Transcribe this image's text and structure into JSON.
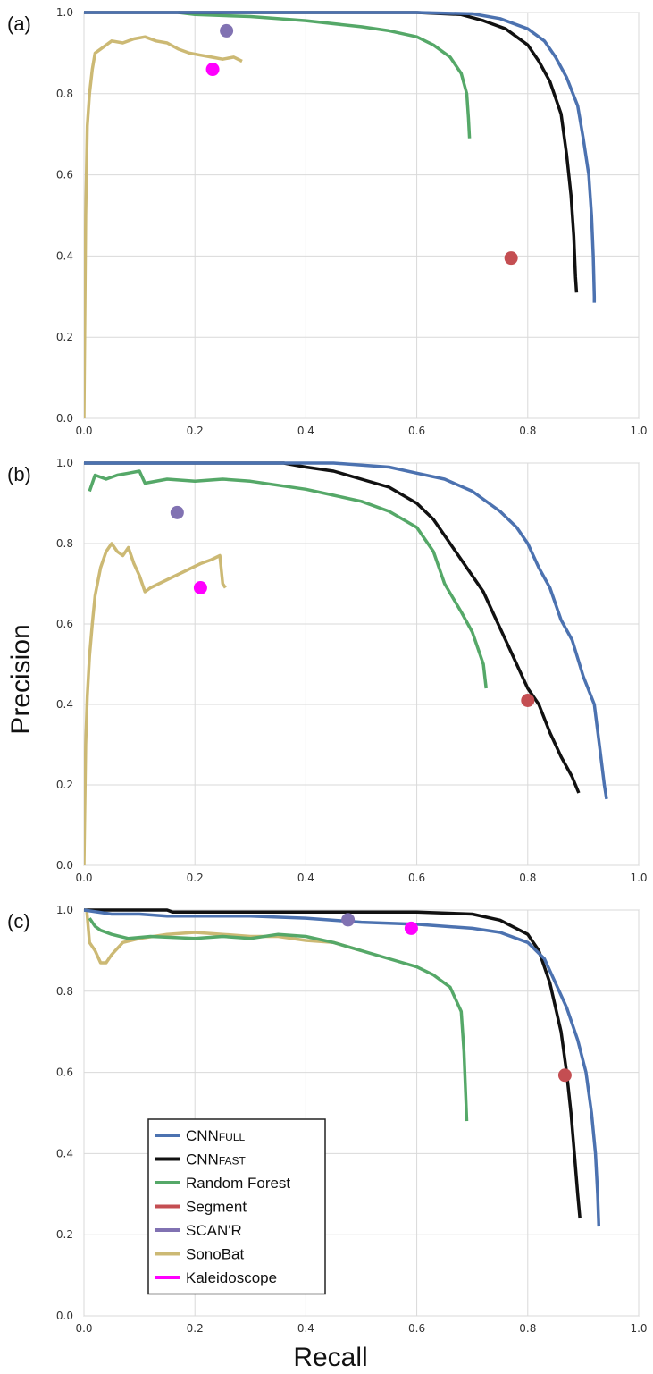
{
  "figure": {
    "xlabel": "Recall",
    "ylabel": "Precision",
    "legend": {
      "placement": "lower-left of panel (c)",
      "entries": [
        {
          "main": "CNN",
          "sub": "FULL",
          "color": "#4c72b0"
        },
        {
          "main": "CNN",
          "sub": "FAST",
          "color": "#111111"
        },
        {
          "main": "Random Forest",
          "sub": "",
          "color": "#55a868"
        },
        {
          "main": "Segment",
          "sub": "",
          "color": "#c44e52"
        },
        {
          "main": "SCAN'R",
          "sub": "",
          "color": "#8172b2"
        },
        {
          "main": "SonoBat",
          "sub": "",
          "color": "#ccb974"
        },
        {
          "main": "Kaleidoscope",
          "sub": "",
          "color": "#ff00ff"
        }
      ]
    }
  },
  "chart_data": [
    {
      "type": "line",
      "panel_label": "(a)",
      "xlim": [
        0,
        1
      ],
      "ylim": [
        0,
        1
      ],
      "xticks": [
        "0.0",
        "0.2",
        "0.4",
        "0.6",
        "0.8",
        "1.0"
      ],
      "yticks": [
        "0.0",
        "0.2",
        "0.4",
        "0.6",
        "0.8",
        "1.0"
      ],
      "grid": true,
      "series": [
        {
          "name": "CNNFULL",
          "color": "#4c72b0",
          "points": [
            [
              0,
              1
            ],
            [
              0.6,
              1
            ],
            [
              0.7,
              0.997
            ],
            [
              0.75,
              0.985
            ],
            [
              0.8,
              0.96
            ],
            [
              0.83,
              0.93
            ],
            [
              0.85,
              0.89
            ],
            [
              0.87,
              0.84
            ],
            [
              0.89,
              0.77
            ],
            [
              0.9,
              0.69
            ],
            [
              0.91,
              0.6
            ],
            [
              0.915,
              0.5
            ],
            [
              0.918,
              0.4
            ],
            [
              0.92,
              0.3
            ],
            [
              0.92,
              0.285
            ]
          ]
        },
        {
          "name": "CNNFAST",
          "color": "#111111",
          "points": [
            [
              0,
              1
            ],
            [
              0.6,
              1
            ],
            [
              0.68,
              0.995
            ],
            [
              0.72,
              0.98
            ],
            [
              0.76,
              0.96
            ],
            [
              0.8,
              0.92
            ],
            [
              0.82,
              0.88
            ],
            [
              0.84,
              0.83
            ],
            [
              0.86,
              0.75
            ],
            [
              0.87,
              0.65
            ],
            [
              0.878,
              0.55
            ],
            [
              0.883,
              0.45
            ],
            [
              0.886,
              0.35
            ],
            [
              0.888,
              0.31
            ]
          ]
        },
        {
          "name": "Random Forest",
          "color": "#55a868",
          "points": [
            [
              0.17,
              1
            ],
            [
              0.2,
              0.995
            ],
            [
              0.3,
              0.99
            ],
            [
              0.4,
              0.98
            ],
            [
              0.5,
              0.965
            ],
            [
              0.55,
              0.955
            ],
            [
              0.6,
              0.94
            ],
            [
              0.63,
              0.92
            ],
            [
              0.66,
              0.89
            ],
            [
              0.68,
              0.85
            ],
            [
              0.69,
              0.8
            ],
            [
              0.693,
              0.74
            ],
            [
              0.695,
              0.69
            ]
          ]
        },
        {
          "name": "SonoBat",
          "color": "#ccb974",
          "points": [
            [
              0,
              0
            ],
            [
              0.003,
              0.5
            ],
            [
              0.006,
              0.72
            ],
            [
              0.01,
              0.8
            ],
            [
              0.015,
              0.86
            ],
            [
              0.02,
              0.9
            ],
            [
              0.03,
              0.91
            ],
            [
              0.05,
              0.93
            ],
            [
              0.07,
              0.925
            ],
            [
              0.09,
              0.935
            ],
            [
              0.11,
              0.94
            ],
            [
              0.13,
              0.93
            ],
            [
              0.15,
              0.925
            ],
            [
              0.17,
              0.91
            ],
            [
              0.19,
              0.9
            ],
            [
              0.21,
              0.895
            ],
            [
              0.23,
              0.89
            ],
            [
              0.25,
              0.885
            ],
            [
              0.27,
              0.89
            ],
            [
              0.285,
              0.88
            ]
          ]
        }
      ],
      "points": [
        {
          "name": "Segment",
          "color": "#c44e52",
          "x": 0.77,
          "y": 0.395
        },
        {
          "name": "SCAN'R",
          "color": "#8172b2",
          "x": 0.257,
          "y": 0.955
        },
        {
          "name": "Kaleidoscope",
          "color": "#ff00ff",
          "x": 0.232,
          "y": 0.86
        }
      ]
    },
    {
      "type": "line",
      "panel_label": "(b)",
      "xlim": [
        0,
        1
      ],
      "ylim": [
        0,
        1
      ],
      "xticks": [
        "0.0",
        "0.2",
        "0.4",
        "0.6",
        "0.8",
        "1.0"
      ],
      "yticks": [
        "0.0",
        "0.2",
        "0.4",
        "0.6",
        "0.8",
        "1.0"
      ],
      "grid": true,
      "series": [
        {
          "name": "CNNFULL",
          "color": "#4c72b0",
          "points": [
            [
              0,
              1
            ],
            [
              0.45,
              1
            ],
            [
              0.55,
              0.99
            ],
            [
              0.6,
              0.975
            ],
            [
              0.65,
              0.96
            ],
            [
              0.7,
              0.93
            ],
            [
              0.75,
              0.88
            ],
            [
              0.78,
              0.84
            ],
            [
              0.8,
              0.8
            ],
            [
              0.82,
              0.74
            ],
            [
              0.84,
              0.69
            ],
            [
              0.86,
              0.61
            ],
            [
              0.88,
              0.56
            ],
            [
              0.9,
              0.47
            ],
            [
              0.92,
              0.4
            ],
            [
              0.93,
              0.29
            ],
            [
              0.938,
              0.2
            ],
            [
              0.942,
              0.165
            ]
          ]
        },
        {
          "name": "CNNFAST",
          "color": "#111111",
          "points": [
            [
              0,
              1
            ],
            [
              0.36,
              1
            ],
            [
              0.4,
              0.99
            ],
            [
              0.45,
              0.98
            ],
            [
              0.5,
              0.96
            ],
            [
              0.55,
              0.94
            ],
            [
              0.6,
              0.9
            ],
            [
              0.63,
              0.86
            ],
            [
              0.66,
              0.8
            ],
            [
              0.69,
              0.74
            ],
            [
              0.72,
              0.68
            ],
            [
              0.74,
              0.62
            ],
            [
              0.76,
              0.56
            ],
            [
              0.78,
              0.5
            ],
            [
              0.8,
              0.44
            ],
            [
              0.82,
              0.4
            ],
            [
              0.84,
              0.33
            ],
            [
              0.86,
              0.27
            ],
            [
              0.88,
              0.22
            ],
            [
              0.892,
              0.18
            ]
          ]
        },
        {
          "name": "Random Forest",
          "color": "#55a868",
          "points": [
            [
              0.01,
              0.93
            ],
            [
              0.02,
              0.97
            ],
            [
              0.04,
              0.96
            ],
            [
              0.06,
              0.97
            ],
            [
              0.08,
              0.975
            ],
            [
              0.1,
              0.98
            ],
            [
              0.11,
              0.95
            ],
            [
              0.15,
              0.96
            ],
            [
              0.2,
              0.955
            ],
            [
              0.25,
              0.96
            ],
            [
              0.3,
              0.955
            ],
            [
              0.35,
              0.945
            ],
            [
              0.4,
              0.935
            ],
            [
              0.45,
              0.92
            ],
            [
              0.5,
              0.905
            ],
            [
              0.55,
              0.88
            ],
            [
              0.6,
              0.84
            ],
            [
              0.63,
              0.78
            ],
            [
              0.65,
              0.7
            ],
            [
              0.68,
              0.63
            ],
            [
              0.7,
              0.58
            ],
            [
              0.72,
              0.5
            ],
            [
              0.725,
              0.44
            ]
          ]
        },
        {
          "name": "SonoBat",
          "color": "#ccb974",
          "points": [
            [
              0,
              0
            ],
            [
              0.003,
              0.3
            ],
            [
              0.006,
              0.42
            ],
            [
              0.01,
              0.52
            ],
            [
              0.015,
              0.6
            ],
            [
              0.02,
              0.67
            ],
            [
              0.03,
              0.74
            ],
            [
              0.04,
              0.78
            ],
            [
              0.05,
              0.8
            ],
            [
              0.06,
              0.78
            ],
            [
              0.07,
              0.77
            ],
            [
              0.08,
              0.79
            ],
            [
              0.09,
              0.75
            ],
            [
              0.1,
              0.72
            ],
            [
              0.11,
              0.68
            ],
            [
              0.12,
              0.69
            ],
            [
              0.15,
              0.71
            ],
            [
              0.18,
              0.73
            ],
            [
              0.21,
              0.75
            ],
            [
              0.23,
              0.76
            ],
            [
              0.245,
              0.77
            ],
            [
              0.25,
              0.7
            ],
            [
              0.255,
              0.69
            ]
          ]
        }
      ],
      "points": [
        {
          "name": "Segment",
          "color": "#c44e52",
          "x": 0.8,
          "y": 0.41
        },
        {
          "name": "SCAN'R",
          "color": "#8172b2",
          "x": 0.168,
          "y": 0.877
        },
        {
          "name": "Kaleidoscope",
          "color": "#ff00ff",
          "x": 0.21,
          "y": 0.69
        }
      ]
    },
    {
      "type": "line",
      "panel_label": "(c)",
      "xlim": [
        0,
        1
      ],
      "ylim": [
        0,
        1
      ],
      "xticks": [
        "0.0",
        "0.2",
        "0.4",
        "0.6",
        "0.8",
        "1.0"
      ],
      "yticks": [
        "0.0",
        "0.2",
        "0.4",
        "0.6",
        "0.8",
        "1.0"
      ],
      "grid": true,
      "series": [
        {
          "name": "CNNFULL",
          "color": "#4c72b0",
          "points": [
            [
              0,
              1
            ],
            [
              0.05,
              0.99
            ],
            [
              0.1,
              0.99
            ],
            [
              0.15,
              0.985
            ],
            [
              0.3,
              0.985
            ],
            [
              0.4,
              0.98
            ],
            [
              0.5,
              0.97
            ],
            [
              0.6,
              0.965
            ],
            [
              0.7,
              0.955
            ],
            [
              0.75,
              0.945
            ],
            [
              0.8,
              0.92
            ],
            [
              0.83,
              0.88
            ],
            [
              0.85,
              0.82
            ],
            [
              0.87,
              0.76
            ],
            [
              0.89,
              0.68
            ],
            [
              0.905,
              0.6
            ],
            [
              0.915,
              0.5
            ],
            [
              0.922,
              0.4
            ],
            [
              0.926,
              0.3
            ],
            [
              0.928,
              0.22
            ]
          ]
        },
        {
          "name": "CNNFAST",
          "color": "#111111",
          "points": [
            [
              0,
              1
            ],
            [
              0.15,
              1
            ],
            [
              0.16,
              0.995
            ],
            [
              0.3,
              0.995
            ],
            [
              0.5,
              0.995
            ],
            [
              0.6,
              0.995
            ],
            [
              0.7,
              0.99
            ],
            [
              0.75,
              0.975
            ],
            [
              0.8,
              0.94
            ],
            [
              0.82,
              0.9
            ],
            [
              0.84,
              0.82
            ],
            [
              0.86,
              0.7
            ],
            [
              0.87,
              0.6
            ],
            [
              0.878,
              0.5
            ],
            [
              0.884,
              0.4
            ],
            [
              0.89,
              0.3
            ],
            [
              0.894,
              0.24
            ]
          ]
        },
        {
          "name": "Random Forest",
          "color": "#55a868",
          "points": [
            [
              0.01,
              0.98
            ],
            [
              0.02,
              0.96
            ],
            [
              0.03,
              0.95
            ],
            [
              0.05,
              0.94
            ],
            [
              0.08,
              0.93
            ],
            [
              0.12,
              0.935
            ],
            [
              0.2,
              0.93
            ],
            [
              0.25,
              0.935
            ],
            [
              0.3,
              0.93
            ],
            [
              0.35,
              0.94
            ],
            [
              0.4,
              0.935
            ],
            [
              0.45,
              0.92
            ],
            [
              0.5,
              0.9
            ],
            [
              0.55,
              0.88
            ],
            [
              0.6,
              0.86
            ],
            [
              0.63,
              0.84
            ],
            [
              0.66,
              0.81
            ],
            [
              0.68,
              0.75
            ],
            [
              0.685,
              0.65
            ],
            [
              0.688,
              0.55
            ],
            [
              0.69,
              0.48
            ]
          ]
        },
        {
          "name": "SonoBat",
          "color": "#ccb974",
          "points": [
            [
              0.005,
              1
            ],
            [
              0.01,
              0.92
            ],
            [
              0.02,
              0.9
            ],
            [
              0.03,
              0.87
            ],
            [
              0.04,
              0.87
            ],
            [
              0.05,
              0.89
            ],
            [
              0.07,
              0.92
            ],
            [
              0.1,
              0.93
            ],
            [
              0.15,
              0.94
            ],
            [
              0.2,
              0.945
            ],
            [
              0.25,
              0.94
            ],
            [
              0.3,
              0.935
            ],
            [
              0.35,
              0.935
            ],
            [
              0.4,
              0.925
            ],
            [
              0.45,
              0.92
            ],
            [
              0.5,
              0.9
            ]
          ]
        }
      ],
      "points": [
        {
          "name": "Segment",
          "color": "#c44e52",
          "x": 0.867,
          "y": 0.593
        },
        {
          "name": "SCAN'R",
          "color": "#8172b2",
          "x": 0.476,
          "y": 0.976
        },
        {
          "name": "Kaleidoscope",
          "color": "#ff00ff",
          "x": 0.59,
          "y": 0.955
        }
      ]
    }
  ]
}
